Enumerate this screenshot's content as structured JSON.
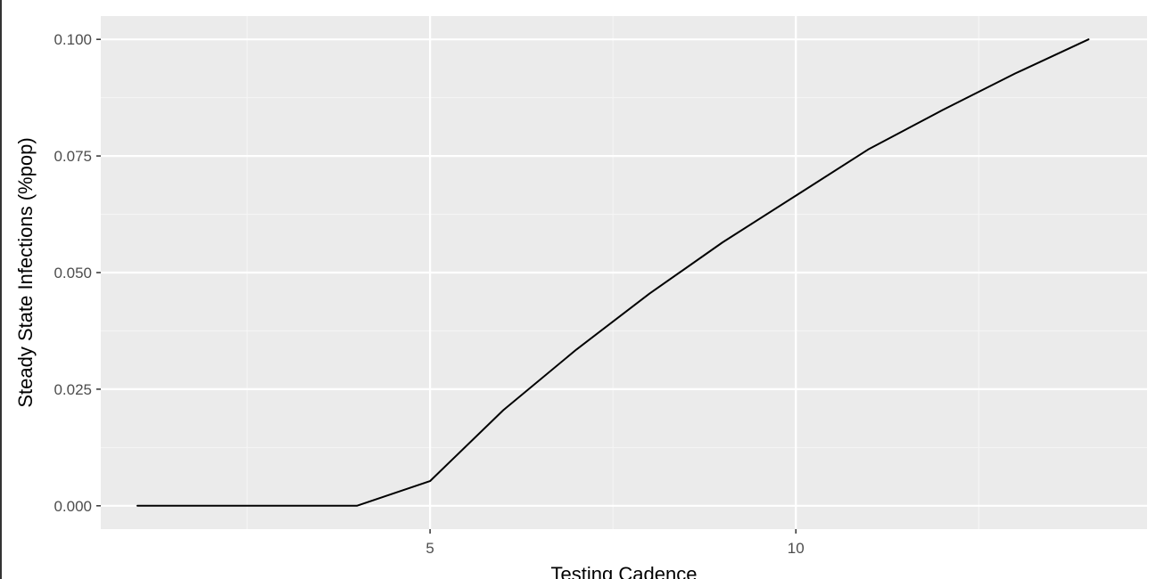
{
  "chart_data": {
    "type": "line",
    "title": "",
    "xlabel": "Testing Cadence",
    "ylabel": "Steady State Infections (%pop)",
    "xlim": [
      0.5,
      14.8
    ],
    "ylim": [
      -0.005,
      0.105
    ],
    "x_ticks": [
      5,
      10
    ],
    "x_tick_labels": [
      "5",
      "10"
    ],
    "y_ticks": [
      0.0,
      0.025,
      0.05,
      0.075,
      0.1
    ],
    "y_tick_labels": [
      "0.000",
      "0.025",
      "0.050",
      "0.075",
      "0.100"
    ],
    "grid": true,
    "series": [
      {
        "color": "#000000",
        "x": [
          1,
          2,
          3,
          4,
          5,
          6,
          7,
          8,
          9,
          10,
          11,
          12,
          13,
          14
        ],
        "y": [
          0.0,
          0.0,
          0.0,
          0.0,
          0.0053,
          0.0205,
          0.0335,
          0.0455,
          0.0565,
          0.0665,
          0.0765,
          0.0848,
          0.0927,
          0.1
        ]
      }
    ]
  },
  "colors": {
    "panel_background": "#ebebeb",
    "grid_major": "#ffffff",
    "grid_minor": "#f5f5f5",
    "tick_label": "#4d4d4d",
    "axis_title": "#000000"
  }
}
